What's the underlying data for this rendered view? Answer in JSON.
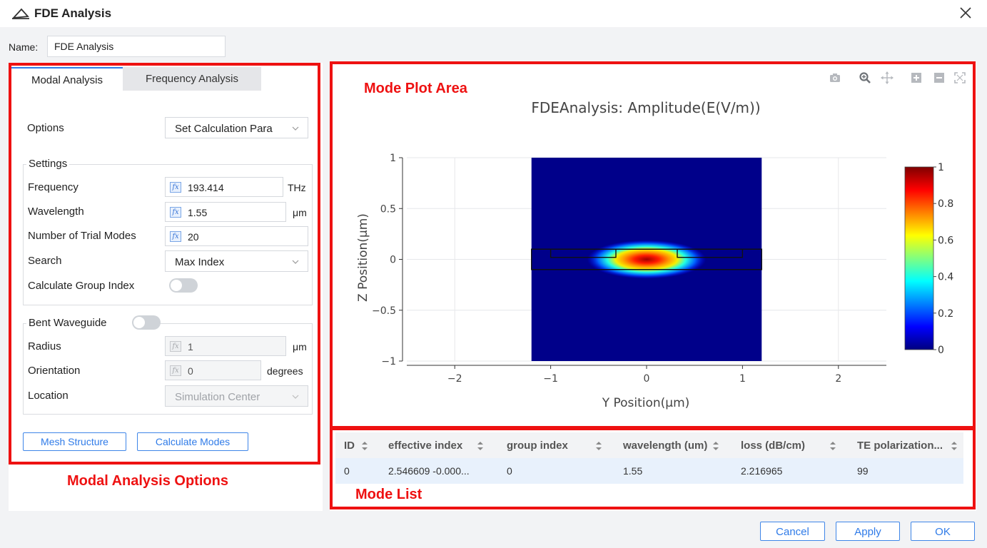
{
  "window": {
    "title": "FDE Analysis"
  },
  "name": {
    "label": "Name:",
    "value": "FDE Analysis"
  },
  "tabs": [
    {
      "label": "Modal Analysis",
      "active": true
    },
    {
      "label": "Frequency Analysis",
      "active": false
    }
  ],
  "options": {
    "label": "Options",
    "value": "Set Calculation Para"
  },
  "settings": {
    "title": "Settings",
    "frequency": {
      "label": "Frequency",
      "value": "193.414",
      "unit": "THz"
    },
    "wavelength": {
      "label": "Wavelength",
      "value": "1.55",
      "unit": "μm"
    },
    "trial_modes": {
      "label": "Number of Trial Modes",
      "value": "20"
    },
    "search": {
      "label": "Search",
      "value": "Max Index"
    },
    "group_index": {
      "label": "Calculate Group Index",
      "on": false
    }
  },
  "bent": {
    "title": "Bent Waveguide",
    "on": false,
    "radius": {
      "label": "Radius",
      "value": "1",
      "unit": "μm"
    },
    "orientation": {
      "label": "Orientation",
      "value": "0",
      "unit": "degrees"
    },
    "location": {
      "label": "Location",
      "value": "Simulation Center"
    }
  },
  "actions": {
    "mesh": "Mesh Structure",
    "calculate": "Calculate Modes"
  },
  "annotations": {
    "modal": "Modal Analysis Options",
    "plot": "Mode Plot Area",
    "list": "Mode List"
  },
  "plot": {
    "title": "FDEAnalysis: Amplitude(E(V/m))",
    "xlabel": "Y Position(μm)",
    "ylabel": "Z Position(μm)",
    "xticks": [
      "−2",
      "−1",
      "0",
      "1",
      "2"
    ],
    "yticks": [
      "1",
      "0.5",
      "0",
      "−0.5",
      "−1"
    ],
    "colorbar_ticks": [
      "1",
      "0.8",
      "0.6",
      "0.4",
      "0.2",
      "0"
    ],
    "colormap": [
      "#00007f",
      "#0000ff",
      "#00ffff",
      "#ffff00",
      "#ff0000",
      "#7f0000"
    ]
  },
  "chart_data": {
    "type": "heatmap",
    "title": "FDEAnalysis: Amplitude(E(V/m))",
    "xlabel": "Y Position(μm)",
    "ylabel": "Z Position(μm)",
    "xlim": [
      -2.5,
      2.5
    ],
    "ylim": [
      -1,
      1
    ],
    "data_extent_y": [
      -1.2,
      1.2
    ],
    "colorbar_range": [
      0,
      1
    ],
    "peak": {
      "y": 0,
      "z": 0,
      "value": 1
    }
  },
  "table": {
    "columns": [
      "ID",
      "effective index",
      "group index",
      "wavelength (um)",
      "loss (dB/cm)",
      "TE polarization..."
    ],
    "rows": [
      [
        "0",
        "2.546609 -0.000...",
        "0",
        "1.55",
        "2.216965",
        "99"
      ]
    ]
  },
  "footer": {
    "cancel": "Cancel",
    "apply": "Apply",
    "ok": "OK"
  }
}
